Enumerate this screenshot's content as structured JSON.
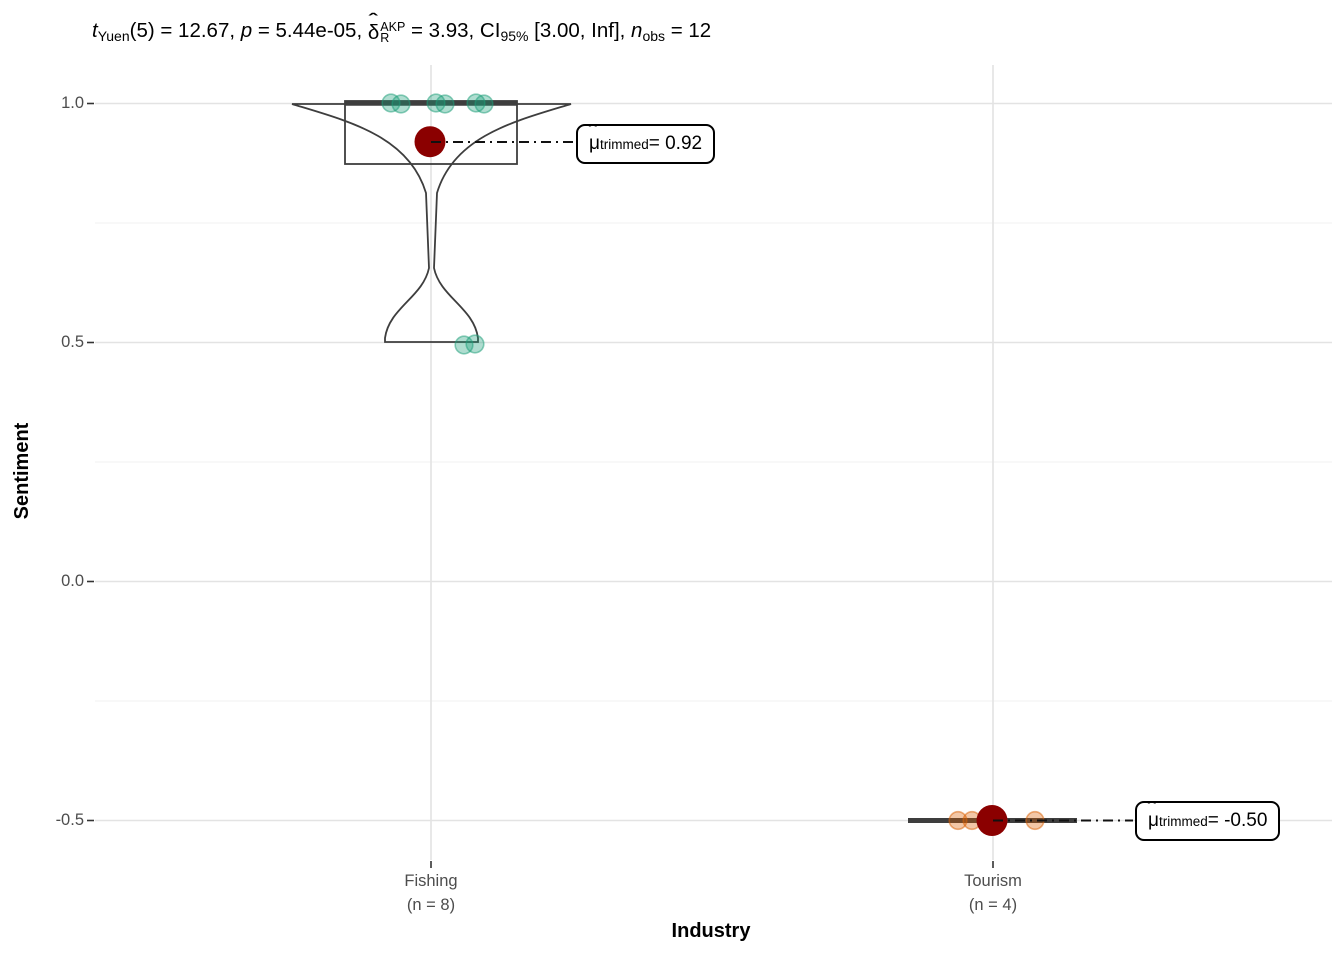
{
  "title": {
    "t": "t",
    "t_sub": "Yuen",
    "seg1": "(5) = 12.67, ",
    "p": "p",
    "seg2": " = 5.44e-05, ",
    "delta_hat": "ˆ",
    "delta": "δ",
    "delta_sup": "AKP",
    "delta_sub": "R",
    "seg3": " = 3.93, CI",
    "ci_sub": "95%",
    "seg4": " [3.00, Inf], ",
    "n": "n",
    "n_sub": "obs",
    "seg5": " = 12"
  },
  "axes": {
    "y_title": "Sentiment",
    "x_title": "Industry",
    "y_tick_labels": [
      "1.0",
      "0.5",
      "0.0",
      "-0.5"
    ],
    "x_tick_labels": [
      [
        "Fishing",
        "(n = 8)"
      ],
      [
        "Tourism",
        "(n = 4)"
      ]
    ]
  },
  "annotations": {
    "fishing": {
      "hat": "ˆ",
      "mu": "μ",
      "sub": "trimmed",
      "eq": " = 0.92"
    },
    "tourism": {
      "hat": "ˆ",
      "mu": "μ",
      "sub": "trimmed",
      "eq": " = -0.50"
    }
  },
  "colors": {
    "teal_fill": "rgba(27,158,119,0.35)",
    "teal_stroke": "rgba(27,158,119,0.5)",
    "orange_fill": "rgba(217,95,2,0.35)",
    "orange_stroke": "rgba(217,95,2,0.5)",
    "centrality_point": "#8B0000",
    "grid_major": "#E3E3E3",
    "grid_minor": "#F1F1F1",
    "shape_outline": "#3E3E3E",
    "tick_label": "#4D4D4D",
    "connector": "#111111"
  },
  "chart_data": {
    "type": "violin-box-scatter (ggbetweenstats)",
    "title_stats": "t_Yuen(5) = 12.67, p = 5.44e-05, delta-hat_R^AKP = 3.93, CI_95% [3.00, Inf], n_obs = 12",
    "xlabel": "Industry",
    "ylabel": "Sentiment",
    "ylim": [
      -0.5,
      1.0
    ],
    "y_major_ticks": [
      1.0,
      0.5,
      0.0,
      -0.5
    ],
    "y_minor_ticks": [
      0.75,
      0.25,
      -0.25
    ],
    "categories": [
      "Fishing",
      "Tourism"
    ],
    "groups": [
      {
        "name": "Fishing",
        "n": 8,
        "values": [
          1.0,
          1.0,
          1.0,
          1.0,
          1.0,
          1.0,
          0.5,
          0.5
        ],
        "trimmed_mean": 0.92,
        "trimmed_mean_label": "0.92",
        "box": {
          "q1": 0.87,
          "median": 1.0,
          "q3": 1.0
        },
        "jitter": [
          [
            -40,
            -0.5
          ],
          [
            -30,
            0.5
          ],
          [
            5,
            -0.5
          ],
          [
            14,
            0.5
          ],
          [
            45,
            -0.5
          ],
          [
            53,
            0.5
          ],
          [
            33,
            2.5
          ],
          [
            44,
            1.5
          ]
        ]
      },
      {
        "name": "Tourism",
        "n": 4,
        "values": [
          -0.5,
          -0.5,
          -0.5,
          -0.5
        ],
        "trimmed_mean": -0.5,
        "trimmed_mean_label": "-0.50",
        "box": {
          "q1": -0.5,
          "median": -0.5,
          "q3": -0.5
        },
        "jitter": [
          [
            -35,
            0
          ],
          [
            -21,
            0
          ],
          [
            -4,
            0
          ],
          [
            42,
            0
          ]
        ]
      }
    ],
    "legend": "none",
    "grid": "on"
  }
}
